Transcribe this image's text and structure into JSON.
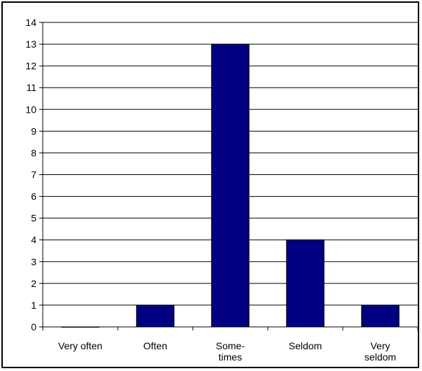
{
  "chart_data": {
    "type": "bar",
    "title": "",
    "xlabel": "",
    "ylabel": "",
    "categories": [
      [
        "Very often"
      ],
      [
        "Often"
      ],
      [
        "Some-",
        "times"
      ],
      [
        "Seldom"
      ],
      [
        "Very",
        "seldom"
      ]
    ],
    "values": [
      0,
      1,
      13,
      4,
      1
    ],
    "ylim": [
      0,
      14
    ],
    "yticks": [
      0,
      1,
      2,
      3,
      4,
      5,
      6,
      7,
      8,
      9,
      10,
      11,
      12,
      13,
      14
    ],
    "grid": true,
    "legend": "none",
    "bar_color": "#000080"
  }
}
